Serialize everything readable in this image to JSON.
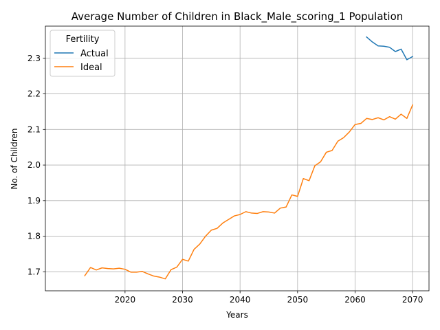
{
  "chart_data": {
    "type": "line",
    "title": "Average Number of Children in Black_Male_scoring_1 Population",
    "xlabel": "Years",
    "ylabel": "No. of Children",
    "xlim": [
      2006.15,
      2072.85
    ],
    "ylim": [
      1.6465,
      2.3905
    ],
    "xticks": [
      2020,
      2030,
      2040,
      2050,
      2060,
      2070
    ],
    "yticks": [
      1.7,
      1.8,
      1.9,
      2.0,
      2.1,
      2.2,
      2.3
    ],
    "ytick_labels": [
      "1.7",
      "1.8",
      "1.9",
      "2.0",
      "2.1",
      "2.2",
      "2.3"
    ],
    "grid": true,
    "legend": {
      "title": "Fertility",
      "position": "top-left"
    },
    "series": [
      {
        "name": "Actual",
        "color": "#1f77b4",
        "x": [
          2062,
          2063,
          2064,
          2065,
          2066,
          2067,
          2068,
          2069,
          2070
        ],
        "y": [
          2.36,
          2.346,
          2.335,
          2.334,
          2.331,
          2.319,
          2.326,
          2.296,
          2.305
        ]
      },
      {
        "name": "Ideal",
        "color": "#ff7f0e",
        "x": [
          2013,
          2014,
          2015,
          2016,
          2017,
          2018,
          2019,
          2020,
          2021,
          2022,
          2023,
          2024,
          2025,
          2026,
          2027,
          2028,
          2029,
          2030,
          2031,
          2032,
          2033,
          2034,
          2035,
          2036,
          2037,
          2038,
          2039,
          2040,
          2041,
          2042,
          2043,
          2044,
          2045,
          2046,
          2047,
          2048,
          2049,
          2050,
          2051,
          2052,
          2053,
          2054,
          2055,
          2056,
          2057,
          2058,
          2059,
          2060,
          2061,
          2062,
          2063,
          2064,
          2065,
          2066,
          2067,
          2068,
          2069,
          2070
        ],
        "y": [
          1.689,
          1.712,
          1.705,
          1.711,
          1.709,
          1.708,
          1.71,
          1.707,
          1.699,
          1.699,
          1.701,
          1.694,
          1.688,
          1.685,
          1.68,
          1.706,
          1.713,
          1.735,
          1.73,
          1.763,
          1.778,
          1.8,
          1.817,
          1.822,
          1.837,
          1.847,
          1.857,
          1.861,
          1.869,
          1.865,
          1.864,
          1.869,
          1.868,
          1.865,
          1.879,
          1.882,
          1.916,
          1.912,
          1.962,
          1.956,
          1.998,
          2.009,
          2.036,
          2.041,
          2.067,
          2.077,
          2.093,
          2.114,
          2.117,
          2.131,
          2.128,
          2.133,
          2.127,
          2.136,
          2.129,
          2.143,
          2.131,
          2.169
        ]
      }
    ]
  }
}
